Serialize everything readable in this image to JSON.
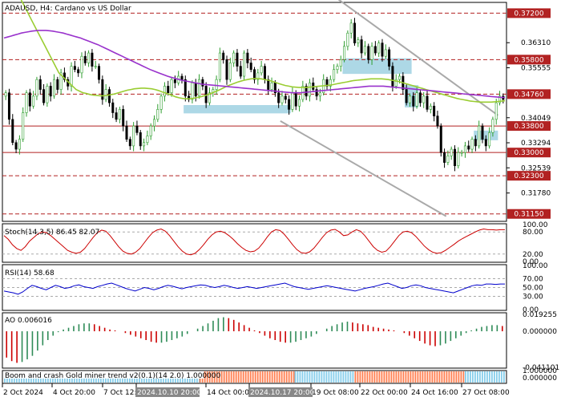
{
  "header": {
    "title": "ADAUSD, H4:  Cardano vs US Dollar"
  },
  "chart_data": {
    "type": "candlestick",
    "symbol": "ADAUSD",
    "timeframe": "H4",
    "description": "Cardano vs US Dollar",
    "ylim": [
      0.3095,
      0.375
    ],
    "price_ticks": [
      "0.36310",
      "0.35555",
      "0.34049",
      "0.33294",
      "0.32539",
      "0.31780"
    ],
    "x_ticks": [
      "2 Oct 2024",
      "4 Oct 20:00",
      "7 Oct 12:00",
      "2024.10.10 20:00",
      "14 Oct 00:00",
      "2024.10.17 20:00",
      "19 Oct 08:00",
      "22 Oct 00:00",
      "24 Oct 16:00",
      "27 Oct 08:00"
    ],
    "levels": [
      {
        "value": 0.372,
        "label": "0.37200",
        "style": "dashed"
      },
      {
        "value": 0.358,
        "label": "0.35800",
        "style": "dashed"
      },
      {
        "value": 0.3476,
        "label": "0.34760",
        "style": "dashed"
      },
      {
        "value": 0.338,
        "label": "0.33800",
        "style": "solid"
      },
      {
        "value": 0.33,
        "label": "0.33000",
        "style": "solid"
      },
      {
        "value": 0.323,
        "label": "0.32300",
        "style": "dashed"
      },
      {
        "value": 0.3115,
        "label": "0.31150",
        "style": "dashed"
      }
    ],
    "zones": [
      {
        "from_bar": 52,
        "to_bar": 83,
        "low": 0.3418,
        "high": 0.3443
      },
      {
        "from_bar": 98,
        "to_bar": 118,
        "low": 0.3537,
        "high": 0.3584
      },
      {
        "from_bar": 116,
        "to_bar": 120,
        "low": 0.3436,
        "high": 0.3503
      },
      {
        "from_bar": 136,
        "to_bar": 143,
        "low": 0.3337,
        "high": 0.3366
      }
    ],
    "channel": [
      {
        "from": [
          95,
          0.3775
        ],
        "to": [
          143,
          0.3412
        ]
      },
      {
        "from": [
          80,
          0.3395
        ],
        "to": [
          128,
          0.3108
        ]
      }
    ],
    "price_series": [
      0.348,
      0.34,
      0.333,
      0.331,
      0.334,
      0.342,
      0.348,
      0.344,
      0.347,
      0.352,
      0.349,
      0.345,
      0.35,
      0.347,
      0.352,
      0.349,
      0.354,
      0.352,
      0.35,
      0.356,
      0.355,
      0.354,
      0.359,
      0.357,
      0.36,
      0.356,
      0.356,
      0.352,
      0.346,
      0.349,
      0.345,
      0.342,
      0.34,
      0.343,
      0.338,
      0.334,
      0.332,
      0.338,
      0.336,
      0.332,
      0.333,
      0.335,
      0.338,
      0.34,
      0.343,
      0.347,
      0.35,
      0.348,
      0.352,
      0.351,
      0.353,
      0.352,
      0.347,
      0.346,
      0.351,
      0.347,
      0.352,
      0.35,
      0.345,
      0.348,
      0.349,
      0.352,
      0.36,
      0.358,
      0.352,
      0.357,
      0.36,
      0.356,
      0.353,
      0.36,
      0.357,
      0.355,
      0.352,
      0.354,
      0.356,
      0.352,
      0.349,
      0.351,
      0.348,
      0.345,
      0.347,
      0.346,
      0.343,
      0.348,
      0.344,
      0.346,
      0.35,
      0.347,
      0.351,
      0.349,
      0.347,
      0.348,
      0.352,
      0.35,
      0.352,
      0.355,
      0.356,
      0.358,
      0.362,
      0.366,
      0.369,
      0.363,
      0.364,
      0.36,
      0.362,
      0.358,
      0.362,
      0.36,
      0.363,
      0.359,
      0.361,
      0.356,
      0.35,
      0.352,
      0.353,
      0.349,
      0.345,
      0.347,
      0.344,
      0.348,
      0.345,
      0.347,
      0.343,
      0.344,
      0.341,
      0.338,
      0.33,
      0.327,
      0.329,
      0.331,
      0.326,
      0.33,
      0.33,
      0.332,
      0.331,
      0.334,
      0.332,
      0.338,
      0.334,
      0.332,
      0.336,
      0.34,
      0.345,
      0.347,
      0.346
    ],
    "ma_fast": [
      0.386,
      0.384,
      0.382,
      0.38,
      0.378,
      0.376,
      0.374,
      0.372,
      0.37,
      0.368,
      0.366,
      0.364,
      0.362,
      0.36,
      0.358,
      0.356,
      0.354,
      0.353,
      0.352,
      0.351,
      0.35,
      0.349,
      0.3485,
      0.348,
      0.3478,
      0.3475,
      0.3473,
      0.3472,
      0.3471,
      0.3471,
      0.3472,
      0.3474,
      0.3476,
      0.3479,
      0.3482,
      0.3485,
      0.3488,
      0.349,
      0.3492,
      0.3493,
      0.3494,
      0.3494,
      0.3493,
      0.3492,
      0.349,
      0.3487,
      0.3483,
      0.348,
      0.3476,
      0.3472,
      0.3468,
      0.3465,
      0.3463,
      0.3462,
      0.3462,
      0.3463,
      0.3465,
      0.3467,
      0.347,
      0.3473,
      0.3477,
      0.3481,
      0.3485,
      0.349,
      0.3495,
      0.35,
      0.3504,
      0.3508,
      0.3512,
      0.3515,
      0.3518,
      0.352,
      0.3522,
      0.3523,
      0.3523,
      0.3522,
      0.352,
      0.3518,
      0.3515,
      0.3512,
      0.3508,
      0.3505,
      0.3502,
      0.35,
      0.3498,
      0.3497,
      0.3496,
      0.3496,
      0.3496,
      0.3497,
      0.3498,
      0.3499,
      0.35,
      0.3501,
      0.3502,
      0.3503,
      0.3505,
      0.3507,
      0.3509,
      0.3511,
      0.3513,
      0.3515,
      0.3517,
      0.3518,
      0.3519,
      0.352,
      0.3521,
      0.3522,
      0.3522,
      0.3522,
      0.3522,
      0.3521,
      0.352,
      0.3518,
      0.3516,
      0.3514,
      0.3511,
      0.3508,
      0.3505,
      0.3502,
      0.3499,
      0.3496,
      0.3493,
      0.349,
      0.3487,
      0.3484,
      0.3481,
      0.3478,
      0.3475,
      0.3472,
      0.3469,
      0.3466,
      0.3463,
      0.3461,
      0.3459,
      0.3457,
      0.3455,
      0.3454,
      0.3453,
      0.3452,
      0.3452,
      0.3452,
      0.3452,
      0.3453,
      0.3454,
      0.3455,
      0.3456
    ],
    "ma_slow": [
      0.3645,
      0.3648,
      0.3651,
      0.3654,
      0.3657,
      0.366,
      0.3662,
      0.3664,
      0.3666,
      0.3667,
      0.3668,
      0.3668,
      0.3668,
      0.3667,
      0.3666,
      0.3664,
      0.3662,
      0.366,
      0.3657,
      0.3654,
      0.3651,
      0.3648,
      0.3645,
      0.3641,
      0.3637,
      0.3633,
      0.3629,
      0.3625,
      0.362,
      0.3615,
      0.361,
      0.3605,
      0.36,
      0.3595,
      0.359,
      0.3585,
      0.358,
      0.3575,
      0.357,
      0.3565,
      0.356,
      0.3555,
      0.355,
      0.3546,
      0.3542,
      0.3538,
      0.3534,
      0.353,
      0.3527,
      0.3524,
      0.3521,
      0.3518,
      0.3516,
      0.3514,
      0.3512,
      0.351,
      0.3508,
      0.3506,
      0.3505,
      0.3504,
      0.3503,
      0.3502,
      0.3501,
      0.35,
      0.3499,
      0.3498,
      0.3497,
      0.3496,
      0.3495,
      0.3494,
      0.3493,
      0.3492,
      0.3491,
      0.349,
      0.3489,
      0.3488,
      0.3487,
      0.3486,
      0.3485,
      0.3484,
      0.3483,
      0.3482,
      0.3481,
      0.348,
      0.348,
      0.348,
      0.3481,
      0.3482,
      0.3483,
      0.3484,
      0.3485,
      0.3486,
      0.3487,
      0.3488,
      0.3489,
      0.349,
      0.3491,
      0.3492,
      0.3493,
      0.3494,
      0.3495,
      0.3496,
      0.3497,
      0.3498,
      0.3499,
      0.35,
      0.35,
      0.35,
      0.35,
      0.35,
      0.3499,
      0.3498,
      0.3497,
      0.3496,
      0.3495,
      0.3494,
      0.3493,
      0.3492,
      0.3491,
      0.349,
      0.3489,
      0.3488,
      0.3487,
      0.3486,
      0.3485,
      0.3484,
      0.3483,
      0.3482,
      0.3481,
      0.348,
      0.3479,
      0.3478,
      0.3477,
      0.3476,
      0.3475,
      0.3474,
      0.3473,
      0.3472,
      0.3471,
      0.347,
      0.3469,
      0.3468,
      0.3467,
      0.3466,
      0.3466
    ],
    "stoch": {
      "label": "Stoch(14,3,5) 86.45 82.07",
      "ticks": [
        "100.00",
        "80.00",
        "20.00",
        "0.00"
      ],
      "main": [
        70,
        60,
        45,
        35,
        30,
        40,
        55,
        65,
        75,
        80,
        78,
        70,
        60,
        50,
        40,
        30,
        25,
        22,
        25,
        35,
        50,
        65,
        78,
        85,
        82,
        70,
        55,
        40,
        28,
        22,
        20,
        25,
        35,
        50,
        65,
        78,
        85,
        88,
        82,
        70,
        55,
        40,
        28,
        20,
        18,
        22,
        32,
        45,
        60,
        72,
        80,
        82,
        78,
        70,
        60,
        48,
        38,
        30,
        26,
        28,
        36,
        50,
        66,
        80,
        86,
        84,
        74,
        60,
        45,
        32,
        24,
        22,
        26,
        36,
        50,
        65,
        78,
        85,
        87,
        80,
        70,
        72,
        80,
        86,
        82,
        70,
        55,
        40,
        30,
        25,
        28,
        40,
        55,
        70,
        80,
        82,
        78,
        68,
        55,
        42,
        32,
        25,
        22,
        24,
        30,
        38,
        46,
        55,
        62,
        68,
        74,
        80,
        85,
        88,
        86,
        86,
        85,
        86,
        86
      ]
    },
    "rsi": {
      "label": "RSI(14) 58.68",
      "ticks": [
        "100.00",
        "70.00",
        "50.00",
        "30.00",
        "0.00"
      ],
      "values": [
        42,
        40,
        38,
        35,
        40,
        48,
        55,
        52,
        48,
        45,
        50,
        55,
        52,
        48,
        50,
        54,
        56,
        52,
        50,
        48,
        52,
        55,
        58,
        60,
        56,
        52,
        48,
        45,
        42,
        46,
        50,
        48,
        45,
        48,
        52,
        55,
        53,
        50,
        47,
        50,
        52,
        54,
        56,
        55,
        52,
        50,
        52,
        55,
        53,
        50,
        48,
        50,
        52,
        50,
        48,
        50,
        52,
        54,
        56,
        58,
        60,
        56,
        52,
        50,
        48,
        46,
        48,
        50,
        52,
        54,
        52,
        50,
        48,
        46,
        44,
        42,
        45,
        48,
        50,
        52,
        55,
        58,
        60,
        56,
        52,
        48,
        50,
        54,
        56,
        54,
        50,
        48,
        46,
        44,
        42,
        40,
        38,
        42,
        46,
        50,
        54,
        56,
        55,
        58,
        58,
        57,
        58,
        58
      ]
    },
    "ao": {
      "label": "AO 0.006016",
      "ticks": [
        "0.019255",
        "0.000000",
        "-0.041101"
      ],
      "values": [
        -0.03,
        -0.034,
        -0.036,
        -0.035,
        -0.032,
        -0.028,
        -0.022,
        -0.016,
        -0.01,
        -0.005,
        -0.001,
        0.002,
        0.004,
        0.006,
        0.008,
        0.009,
        0.009,
        0.008,
        0.006,
        0.004,
        0.002,
        0.001,
        0.0,
        -0.002,
        -0.004,
        -0.006,
        -0.008,
        -0.01,
        -0.012,
        -0.013,
        -0.013,
        -0.012,
        -0.01,
        -0.008,
        -0.006,
        -0.003,
        0.0,
        0.003,
        0.006,
        0.009,
        0.012,
        0.015,
        0.016,
        0.015,
        0.013,
        0.01,
        0.007,
        0.004,
        0.001,
        -0.002,
        -0.005,
        -0.008,
        -0.01,
        -0.012,
        -0.013,
        -0.013,
        -0.012,
        -0.01,
        -0.008,
        -0.006,
        -0.003,
        0.0,
        0.003,
        0.006,
        0.008,
        0.01,
        0.011,
        0.01,
        0.009,
        0.008,
        0.007,
        0.005,
        0.004,
        0.003,
        0.002,
        0.001,
        0.0,
        -0.002,
        -0.005,
        -0.008,
        -0.011,
        -0.014,
        -0.016,
        -0.017,
        -0.016,
        -0.014,
        -0.011,
        -0.008,
        -0.005,
        -0.002,
        0.001,
        0.003,
        0.005,
        0.006,
        0.007,
        0.007,
        0.006
      ]
    },
    "trend": {
      "label": "Boom and crash Gold miner trend v2(0.1)(14 2.0) 1.000000",
      "ticks": [
        "1.000000",
        "0.000000"
      ],
      "segments": [
        {
          "from": 0.0,
          "to": 0.39,
          "color": "blue"
        },
        {
          "from": 0.39,
          "to": 0.58,
          "color": "orange"
        },
        {
          "from": 0.58,
          "to": 0.7,
          "color": "blue"
        },
        {
          "from": 0.7,
          "to": 0.92,
          "color": "orange"
        },
        {
          "from": 0.92,
          "to": 1.0,
          "color": "blue"
        }
      ]
    }
  },
  "colors": {
    "up": "#2e9e2e",
    "down": "#000000",
    "ma_fast": "#9acd32",
    "ma_slow": "#9932cc",
    "level": "#b22222",
    "zone": "#add8e6",
    "channel": "#a9a9a9",
    "stoch": "#cc0000",
    "rsi": "#0000cc",
    "ao_up": "#2e8b57",
    "ao_down": "#cc0000",
    "trend_blue": "#87ceeb",
    "trend_orange": "#ff7f50"
  }
}
